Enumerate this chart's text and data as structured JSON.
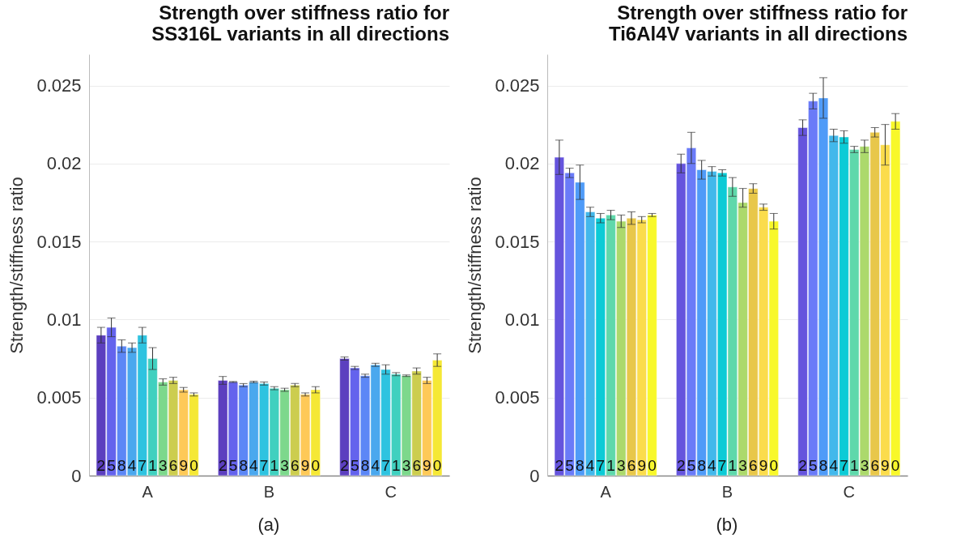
{
  "chart_data": [
    {
      "type": "bar",
      "title": "Strength over stiffness ratio for\nSS316L variants in all directions",
      "ylabel": "Strength/stiffness ratio",
      "categories": [
        "A",
        "B",
        "C"
      ],
      "ylim": [
        0,
        0.027
      ],
      "yticks": [
        0,
        0.005,
        0.01,
        0.015,
        0.02,
        0.025
      ],
      "grid": "y",
      "annotations": [
        "(a)"
      ],
      "series": [
        {
          "name": "2",
          "color": "#5c3fbf",
          "values": [
            0.009,
            0.0061,
            0.0075
          ],
          "errors": [
            0.0005,
            0.00025,
            0.0001
          ]
        },
        {
          "name": "5",
          "color": "#6463ed",
          "values": [
            0.0095,
            0.006,
            0.0069
          ],
          "errors": [
            0.0006,
            3e-05,
            0.0001
          ]
        },
        {
          "name": "8",
          "color": "#5c87f6",
          "values": [
            0.0083,
            0.0058,
            0.0064
          ],
          "errors": [
            0.0004,
            0.0001,
            0.0001
          ]
        },
        {
          "name": "4",
          "color": "#4aa8ee",
          "values": [
            0.0082,
            0.006,
            0.0071
          ],
          "errors": [
            0.0003,
            5e-05,
            0.0001
          ]
        },
        {
          "name": "7",
          "color": "#2ec3e0",
          "values": [
            0.009,
            0.0059,
            0.0068
          ],
          "errors": [
            0.0005,
            0.0001,
            0.0003
          ]
        },
        {
          "name": "1",
          "color": "#40d0bf",
          "values": [
            0.0075,
            0.0056,
            0.0065
          ],
          "errors": [
            0.0007,
            0.0001,
            0.0001
          ]
        },
        {
          "name": "3",
          "color": "#7dd88c",
          "values": [
            0.006,
            0.0055,
            0.0064
          ],
          "errors": [
            0.0002,
            0.0001,
            5e-05
          ]
        },
        {
          "name": "6",
          "color": "#cccd4f",
          "values": [
            0.0061,
            0.0058,
            0.0067
          ],
          "errors": [
            0.0002,
            0.0001,
            0.0002
          ]
        },
        {
          "name": "9",
          "color": "#fec958",
          "values": [
            0.0055,
            0.0052,
            0.0061
          ],
          "errors": [
            0.00015,
            0.0001,
            0.0002
          ]
        },
        {
          "name": "0",
          "color": "#f5e835",
          "values": [
            0.0052,
            0.0055,
            0.0074
          ],
          "errors": [
            0.0001,
            0.0002,
            0.0004
          ]
        }
      ]
    },
    {
      "type": "bar",
      "title": "Strength over stiffness ratio for\nTi6Al4V variants in all directions",
      "ylabel": "Strength/stiffness ratio",
      "categories": [
        "A",
        "B",
        "C"
      ],
      "ylim": [
        0,
        0.027
      ],
      "yticks": [
        0,
        0.005,
        0.01,
        0.015,
        0.02,
        0.025
      ],
      "grid": "y",
      "annotations": [
        "(b)"
      ],
      "series": [
        {
          "name": "2",
          "color": "#6554dd",
          "values": [
            0.0204,
            0.02,
            0.0223
          ],
          "errors": [
            0.0011,
            0.0006,
            0.0005
          ]
        },
        {
          "name": "5",
          "color": "#6a7bf8",
          "values": [
            0.0194,
            0.021,
            0.024
          ],
          "errors": [
            0.0003,
            0.001,
            0.0005
          ]
        },
        {
          "name": "8",
          "color": "#4f9bf8",
          "values": [
            0.0188,
            0.0196,
            0.0242
          ],
          "errors": [
            0.0011,
            0.0006,
            0.0013
          ]
        },
        {
          "name": "4",
          "color": "#42b8eb",
          "values": [
            0.0169,
            0.0195,
            0.0218
          ],
          "errors": [
            0.0003,
            0.0003,
            0.0004
          ]
        },
        {
          "name": "7",
          "color": "#0ccbd6",
          "values": [
            0.0165,
            0.0194,
            0.0217
          ],
          "errors": [
            0.0003,
            0.0002,
            0.0004
          ]
        },
        {
          "name": "1",
          "color": "#5fd8ab",
          "values": [
            0.0167,
            0.0185,
            0.0209
          ],
          "errors": [
            0.0003,
            0.0006,
            0.0002
          ]
        },
        {
          "name": "3",
          "color": "#acd96c",
          "values": [
            0.0163,
            0.0175,
            0.0211
          ],
          "errors": [
            0.0004,
            [
              0.0172,
              0.0184
            ],
            0.0004
          ]
        },
        {
          "name": "6",
          "color": "#e8c74a",
          "values": [
            0.0165,
            0.0184,
            0.022
          ],
          "errors": [
            0.0004,
            0.0003,
            0.0003
          ]
        },
        {
          "name": "9",
          "color": "#fbdc4c",
          "values": [
            0.0164,
            0.0172,
            0.0212
          ],
          "errors": [
            0.0002,
            0.0002,
            0.0013
          ]
        },
        {
          "name": "0",
          "color": "#f8f82a",
          "values": [
            0.0167,
            0.0163,
            0.0227
          ],
          "errors": [
            0.0001,
            0.0005,
            0.0005
          ]
        }
      ]
    }
  ]
}
